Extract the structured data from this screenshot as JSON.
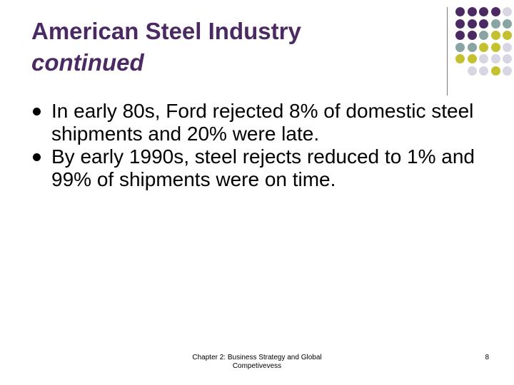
{
  "slide": {
    "title_line1": "American Steel Industry",
    "title_line2": "continued",
    "bullets": [
      "In early 80s, Ford rejected 8% of domestic steel shipments and 20% were late.",
      "By early 1990s, steel rejects reduced to 1% and 99% of shipments were on time."
    ],
    "footer": "Chapter 2: Business Strategy and Global Competivevess",
    "page_number": "8"
  },
  "decor": {
    "colors": {
      "purple": "#4b2a63",
      "teal": "#8aa3a3",
      "olive": "#c3c12e",
      "lavender": "#d9d6e4"
    },
    "dot_grid": [
      [
        "purple",
        "purple",
        "purple",
        "purple",
        "lavender"
      ],
      [
        "purple",
        "purple",
        "purple",
        "teal",
        "teal"
      ],
      [
        "purple",
        "purple",
        "teal",
        "olive",
        "olive"
      ],
      [
        "teal",
        "teal",
        "olive",
        "olive",
        "lavender"
      ],
      [
        "olive",
        "olive",
        "lavender",
        "lavender",
        "lavender"
      ],
      [
        "",
        "lavender",
        "lavender",
        "olive",
        "lavender"
      ]
    ]
  }
}
